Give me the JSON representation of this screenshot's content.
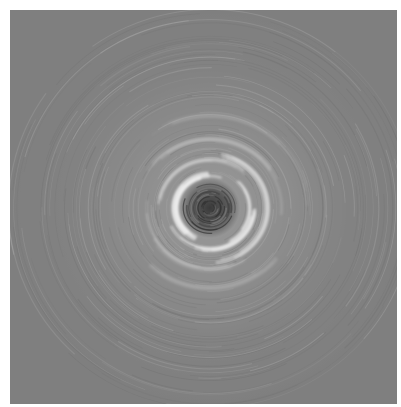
{
  "image": {
    "background_color": "#7f7f7f",
    "page_color": "#ffffff",
    "highlight_color": "#f2f2f2",
    "shadow_color": "#3c3c3c"
  }
}
